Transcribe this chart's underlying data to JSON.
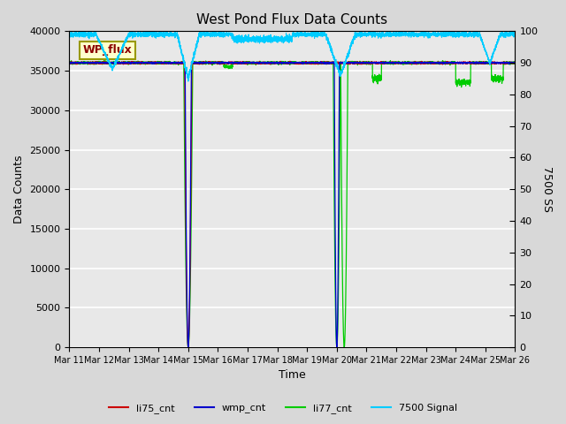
{
  "title": "West Pond Flux Data Counts",
  "xlabel": "Time",
  "ylabel_left": "Data Counts",
  "ylabel_right": "7500 SS",
  "legend_label": "WP_flux",
  "ylim_left": [
    0,
    40000
  ],
  "ylim_right": [
    0,
    100
  ],
  "x_tick_labels": [
    "Mar 11",
    "Mar 12",
    "Mar 13",
    "Mar 14",
    "Mar 15",
    "Mar 16",
    "Mar 17",
    "Mar 18",
    "Mar 19",
    "Mar 20",
    "Mar 21",
    "Mar 22",
    "Mar 23",
    "Mar 24",
    "Mar 25",
    "Mar 26"
  ],
  "bg_color": "#d8d8d8",
  "plot_bg_color": "#e8e8e8",
  "colors": {
    "li75_cnt": "#cc0000",
    "wmp_cnt": "#0000cc",
    "li77_cnt": "#00cc00",
    "signal_7500": "#00ccff"
  },
  "li77_base": 36000,
  "signal_nominal": 99,
  "drop1_day": 4,
  "drop2_day": 9,
  "n_days": 15
}
